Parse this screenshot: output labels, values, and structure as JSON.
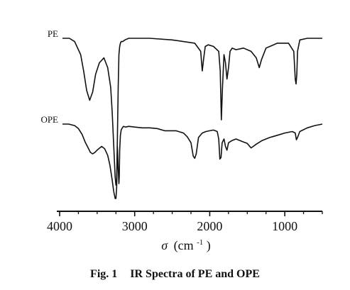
{
  "chart_data": {
    "type": "line",
    "x_axis": {
      "label_symbol": "σ",
      "label_unit": "(cm",
      "label_exp": "-1",
      "label_close": ")",
      "range": [
        4000,
        500
      ],
      "ticks": [
        4000,
        3000,
        2000,
        1000
      ],
      "tick_labels": [
        "4000",
        "3000",
        "2000",
        "1000"
      ],
      "minor_step": 250
    },
    "grid": false,
    "series": [
      {
        "name": "PE",
        "color": "#111111",
        "label_at": 4000,
        "offset": 0,
        "x": [
          3870,
          3800,
          3720,
          3680,
          3640,
          3600,
          3560,
          3520,
          3470,
          3410,
          3360,
          3320,
          3300,
          3280,
          3260,
          3250,
          3240,
          3230,
          3220,
          3210,
          3200,
          3190,
          3180,
          3160,
          3130,
          3080,
          3000,
          2800,
          2500,
          2200,
          2120,
          2100,
          2080,
          2060,
          2020,
          1950,
          1880,
          1860,
          1845,
          1830,
          1810,
          1790,
          1770,
          1750,
          1730,
          1700,
          1650,
          1550,
          1450,
          1380,
          1340,
          1310,
          1250,
          1100,
          950,
          880,
          860,
          850,
          840,
          830,
          800,
          700,
          600,
          500
        ],
        "y": [
          0.0,
          0.02,
          0.1,
          0.2,
          0.32,
          0.38,
          0.33,
          0.22,
          0.15,
          0.12,
          0.18,
          0.3,
          0.45,
          0.65,
          0.85,
          0.9,
          0.88,
          0.6,
          0.3,
          0.1,
          0.05,
          0.03,
          0.02,
          0.02,
          0.01,
          0.0,
          0.0,
          0.0,
          0.01,
          0.03,
          0.08,
          0.2,
          0.12,
          0.05,
          0.04,
          0.05,
          0.08,
          0.2,
          0.5,
          0.3,
          0.1,
          0.15,
          0.25,
          0.18,
          0.08,
          0.06,
          0.07,
          0.06,
          0.08,
          0.12,
          0.18,
          0.13,
          0.06,
          0.03,
          0.03,
          0.08,
          0.25,
          0.28,
          0.22,
          0.08,
          0.01,
          0.0,
          0.0,
          0.0
        ]
      },
      {
        "name": "OPE",
        "color": "#111111",
        "label_at": 4000,
        "offset": 1,
        "x": [
          3880,
          3800,
          3750,
          3700,
          3660,
          3620,
          3590,
          3560,
          3530,
          3490,
          3440,
          3400,
          3360,
          3330,
          3300,
          3280,
          3260,
          3250,
          3240,
          3235,
          3230,
          3220,
          3210,
          3205,
          3200,
          3190,
          3180,
          3170,
          3150,
          3120,
          3080,
          3000,
          2900,
          2800,
          2700,
          2600,
          2450,
          2350,
          2300,
          2250,
          2220,
          2200,
          2180,
          2150,
          2100,
          2050,
          2000,
          1950,
          1900,
          1880,
          1865,
          1850,
          1835,
          1810,
          1790,
          1770,
          1750,
          1700,
          1650,
          1600,
          1550,
          1500,
          1450,
          1420,
          1380,
          1300,
          1200,
          1100,
          1000,
          900,
          860,
          845,
          830,
          800,
          700,
          600,
          500
        ],
        "y": [
          0.0,
          0.02,
          0.06,
          0.14,
          0.24,
          0.32,
          0.38,
          0.4,
          0.38,
          0.34,
          0.3,
          0.33,
          0.42,
          0.55,
          0.75,
          0.9,
          1.0,
          1.0,
          0.85,
          0.55,
          0.3,
          0.6,
          0.8,
          0.7,
          0.35,
          0.15,
          0.08,
          0.06,
          0.03,
          0.04,
          0.03,
          0.04,
          0.05,
          0.05,
          0.06,
          0.09,
          0.09,
          0.12,
          0.17,
          0.25,
          0.43,
          0.46,
          0.4,
          0.18,
          0.12,
          0.1,
          0.09,
          0.08,
          0.1,
          0.2,
          0.47,
          0.45,
          0.25,
          0.2,
          0.3,
          0.35,
          0.25,
          0.22,
          0.2,
          0.22,
          0.24,
          0.26,
          0.32,
          0.3,
          0.27,
          0.22,
          0.18,
          0.15,
          0.12,
          0.1,
          0.12,
          0.21,
          0.18,
          0.1,
          0.05,
          0.02,
          0.0
        ]
      }
    ]
  },
  "caption": {
    "fig": "Fig. 1",
    "text": "IR Spectra of PE and OPE"
  }
}
